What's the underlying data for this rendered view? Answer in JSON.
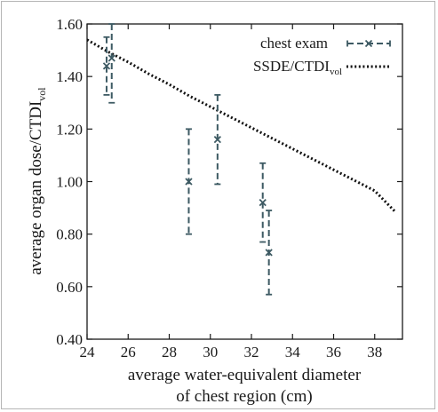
{
  "chart_data": {
    "type": "scatter",
    "ylabel_main": "average organ dose/CTDI",
    "ylabel_sub": "vol",
    "xlabel_line1": "average water-equivalent diameter",
    "xlabel_line2": "of chest region (cm)",
    "xlim": [
      24,
      39
    ],
    "ylim": [
      0.4,
      1.6
    ],
    "x_ticks": [
      24,
      26,
      28,
      30,
      32,
      34,
      36,
      38
    ],
    "x_tick_labels": [
      "24",
      "26",
      "28",
      "30",
      "32",
      "34",
      "36",
      "38"
    ],
    "y_ticks": [
      0.4,
      0.6,
      0.8,
      1.0,
      1.2,
      1.4,
      1.6
    ],
    "y_tick_labels": [
      "0.40",
      "0.60",
      "0.80",
      "1.00",
      "1.20",
      "1.40",
      "1.60"
    ],
    "legend_position": "top-right",
    "series": [
      {
        "name": "chest exam",
        "color": "#3d5a63",
        "marker": "x",
        "error_bars": true,
        "points": [
          {
            "x": 24.95,
            "y": 1.44,
            "y_low": 1.33,
            "y_high": 1.55
          },
          {
            "x": 25.2,
            "y": 1.47,
            "y_low": 1.3,
            "y_high": 1.6
          },
          {
            "x": 28.95,
            "y": 1.0,
            "y_low": 0.8,
            "y_high": 1.2
          },
          {
            "x": 30.35,
            "y": 1.16,
            "y_low": 0.99,
            "y_high": 1.33
          },
          {
            "x": 32.55,
            "y": 0.92,
            "y_low": 0.77,
            "y_high": 1.07
          },
          {
            "x": 32.85,
            "y": 0.73,
            "y_low": 0.57,
            "y_high": 0.89
          }
        ]
      },
      {
        "name_main": "SSDE/CTDI",
        "name_sub": "vol",
        "color": "#111111",
        "style": "dotted",
        "x": [
          24,
          25,
          26,
          27,
          28,
          29,
          30,
          31,
          32,
          33,
          34,
          35,
          36,
          37,
          38,
          39
        ],
        "y": [
          1.54,
          1.495,
          1.455,
          1.41,
          1.37,
          1.325,
          1.285,
          1.245,
          1.205,
          1.165,
          1.125,
          1.085,
          1.045,
          1.005,
          0.965,
          0.885
        ]
      }
    ]
  }
}
